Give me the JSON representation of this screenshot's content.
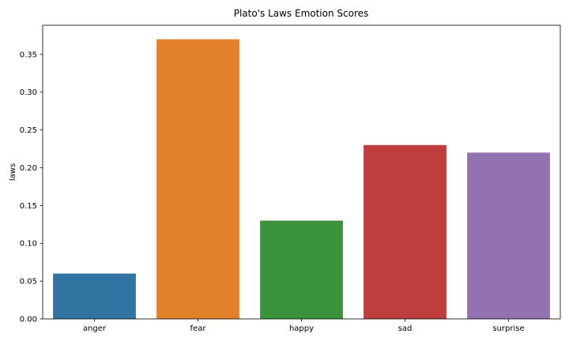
{
  "chart_data": {
    "type": "bar",
    "title": "Plato's Laws Emotion Scores",
    "xlabel": "",
    "ylabel": "laws",
    "categories": [
      "anger",
      "fear",
      "happy",
      "sad",
      "surprise"
    ],
    "values": [
      0.06,
      0.37,
      0.13,
      0.23,
      0.22
    ],
    "colors": [
      "#3274a1",
      "#e1812c",
      "#3a923a",
      "#c03d3e",
      "#9372b2"
    ],
    "ylim": [
      0,
      0.37
    ],
    "yticks": [
      "0.00",
      "0.05",
      "0.10",
      "0.15",
      "0.20",
      "0.25",
      "0.30",
      "0.35"
    ],
    "grid": false
  }
}
